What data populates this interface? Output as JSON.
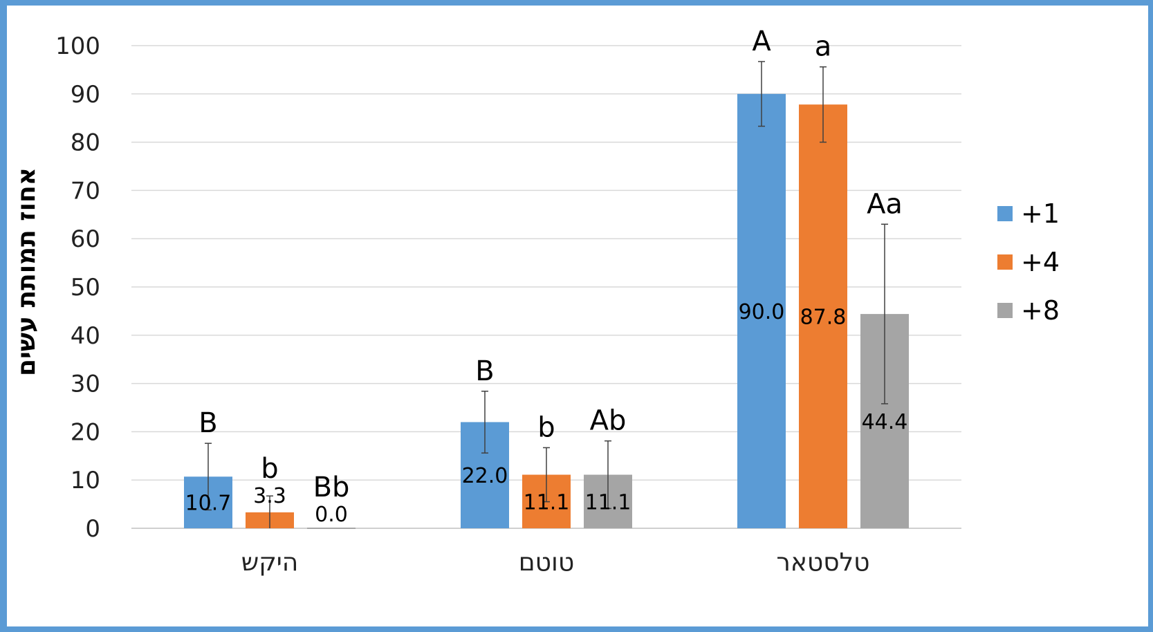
{
  "chart_data": {
    "type": "bar",
    "ylabel": "אחוז תמותת עשים",
    "ylim": [
      0,
      100
    ],
    "yticks": [
      0,
      10,
      20,
      30,
      40,
      50,
      60,
      70,
      80,
      90,
      100
    ],
    "grid": true,
    "legend_position": "right",
    "categories": [
      "היקש",
      "טוטם",
      "טלסטאר"
    ],
    "series": [
      {
        "name": "+1",
        "color": "#5b9bd5",
        "values": [
          10.7,
          22.0,
          90.0
        ],
        "value_labels": [
          "10.7",
          "22.0",
          "90.0"
        ],
        "errors": [
          6.9,
          6.4,
          6.7
        ],
        "significance": [
          "B",
          "B",
          "A"
        ]
      },
      {
        "name": "+4",
        "color": "#ed7d31",
        "values": [
          3.3,
          11.1,
          87.8
        ],
        "value_labels": [
          "3.3",
          "11.1",
          "87.8"
        ],
        "errors": [
          3.4,
          5.6,
          7.8
        ],
        "significance": [
          "b",
          "b",
          "a"
        ]
      },
      {
        "name": "+8",
        "color": "#a5a5a5",
        "values": [
          0.0,
          11.1,
          44.4
        ],
        "value_labels": [
          "0.0",
          "11.1",
          "44.4"
        ],
        "errors": [
          0,
          7.0,
          18.6
        ],
        "significance": [
          "Bb",
          "Ab",
          "Aa"
        ]
      }
    ]
  }
}
